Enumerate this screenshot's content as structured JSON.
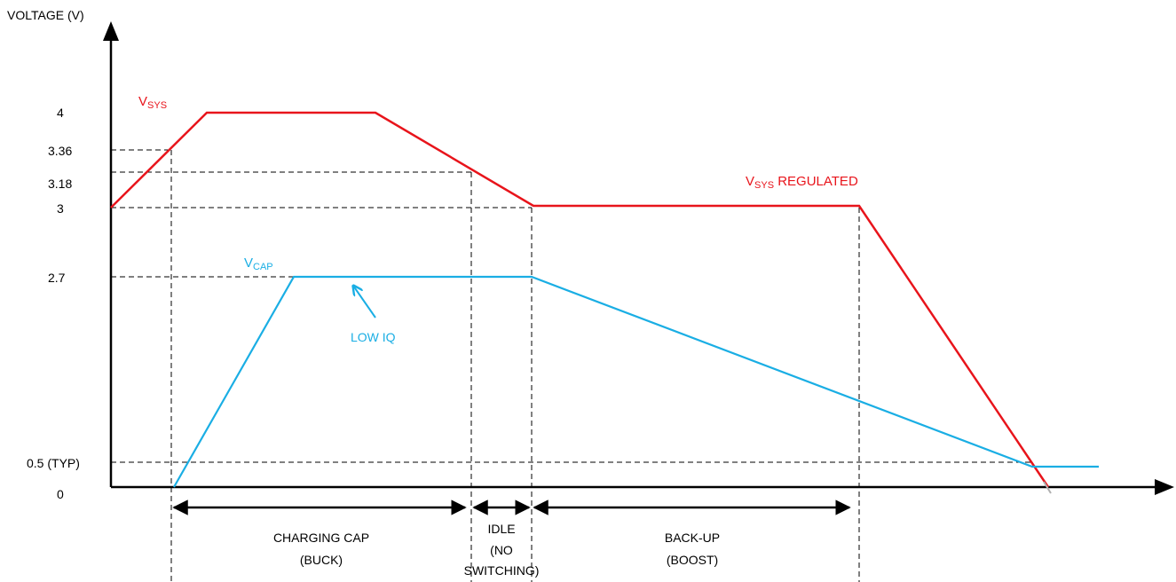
{
  "y_axis_label": "VOLTAGE (V)",
  "y_ticks": [
    "4",
    "3.36",
    "3.18",
    "3",
    "2.7",
    "0.5 (TYP)",
    "0"
  ],
  "vsys_label": {
    "main": "V",
    "sub": "SYS"
  },
  "vsys_regulated_label": {
    "main": "V",
    "sub": "SYS",
    "rest": " REGULATED"
  },
  "vcap_label": {
    "main": "V",
    "sub": "CAP"
  },
  "low_iq_label": "LOW IQ",
  "phases": {
    "charging": {
      "line1": "CHARGING CAP",
      "line2": "(BUCK)"
    },
    "idle": {
      "line1": "IDLE",
      "line2": "(NO",
      "line3": "SWITCHING)"
    },
    "backup": {
      "line1": "BACK-UP",
      "line2": "(BOOST)"
    }
  },
  "colors": {
    "vsys": "#e8141b",
    "vcap": "#1aaee4",
    "axis": "#000000"
  }
}
